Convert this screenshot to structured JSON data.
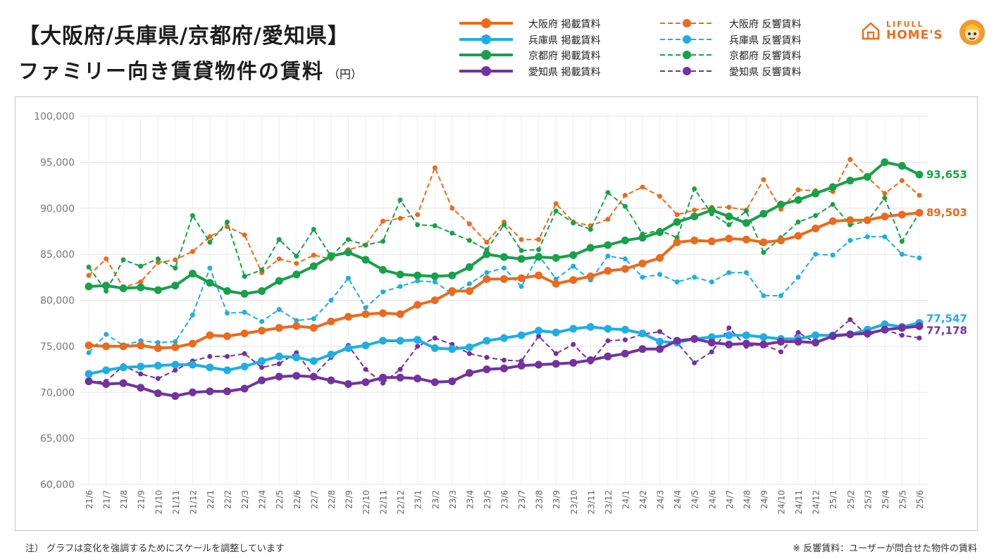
{
  "title": {
    "line1": "【大阪府/兵庫県/京都府/愛知県】",
    "line2": "ファミリー向き賃貸物件の賃料",
    "unit": "（円）"
  },
  "logo": {
    "top": "LIFULL",
    "bottom": "HOME'S"
  },
  "notes": {
    "left": "注） グラフは変化を強調するためにスケールを調整しています",
    "right": "※ 反響賃料：ユーザーが問合せた物件の賃料"
  },
  "colors": {
    "osaka": "#ea6a1e",
    "hyogo": "#1eaee3",
    "kyoto": "#18a04a",
    "aichi": "#7232a0"
  },
  "chart_data": {
    "type": "line",
    "categories": [
      "21/6",
      "21/7",
      "21/8",
      "21/9",
      "21/10",
      "21/11",
      "21/12",
      "22/1",
      "22/2",
      "22/3",
      "22/4",
      "22/5",
      "22/6",
      "22/7",
      "22/8",
      "22/9",
      "22/10",
      "22/11",
      "22/12",
      "23/1",
      "23/2",
      "23/3",
      "23/4",
      "23/5",
      "23/6",
      "23/7",
      "23/8",
      "23/9",
      "23/10",
      "23/11",
      "23/12",
      "24/1",
      "24/2",
      "24/3",
      "24/4",
      "24/5",
      "24/6",
      "24/7",
      "24/8",
      "24/9",
      "24/10",
      "24/11",
      "24/12",
      "25/1",
      "25/2",
      "25/3",
      "25/4",
      "25/5",
      "25/6"
    ],
    "y_ticks": [
      "60,000",
      "65,000",
      "70,000",
      "75,000",
      "80,000",
      "85,000",
      "90,000",
      "95,000",
      "100,000"
    ],
    "ylim": [
      60000,
      100000
    ],
    "grid": true,
    "legend_position": "top",
    "end_labels": [
      {
        "series": "京都府 掲載賃料",
        "text": "93,653"
      },
      {
        "series": "大阪府 掲載賃料",
        "text": "89,503"
      },
      {
        "series": "兵庫県 掲載賃料",
        "text": "77,547"
      },
      {
        "series": "愛知県 掲載賃料",
        "text": "77,178"
      }
    ],
    "series": [
      {
        "name": "大阪府 掲載賃料",
        "color": "#ea6a1e",
        "style": "solid",
        "values": [
          75100,
          75000,
          75000,
          75100,
          74800,
          74900,
          75300,
          76200,
          76100,
          76400,
          76700,
          77000,
          77200,
          77000,
          77700,
          78200,
          78500,
          78600,
          78500,
          79500,
          80000,
          81000,
          81000,
          82300,
          82300,
          82400,
          82700,
          81800,
          82200,
          82600,
          83200,
          83400,
          84000,
          84600,
          86300,
          86500,
          86400,
          86700,
          86600,
          86300,
          86500,
          87000,
          87800,
          88600,
          88700,
          88700,
          89100,
          89300,
          89503
        ]
      },
      {
        "name": "兵庫県 掲載賃料",
        "color": "#1eaee3",
        "style": "solid",
        "values": [
          72000,
          72400,
          72700,
          72800,
          72900,
          73000,
          73000,
          72700,
          72400,
          72800,
          73400,
          73900,
          73800,
          73400,
          74100,
          74800,
          75100,
          75600,
          75600,
          75700,
          74800,
          74700,
          74900,
          75600,
          75900,
          76200,
          76700,
          76500,
          76900,
          77100,
          76900,
          76800,
          76400,
          75500,
          75400,
          75800,
          76000,
          76200,
          76200,
          76000,
          75800,
          75800,
          76200,
          76200,
          76300,
          76800,
          77400,
          77100,
          77547
        ]
      },
      {
        "name": "京都府 掲載賃料",
        "color": "#18a04a",
        "style": "solid",
        "values": [
          81500,
          81600,
          81300,
          81400,
          81100,
          81600,
          82900,
          81900,
          81000,
          80700,
          81000,
          82100,
          82800,
          83700,
          84800,
          85200,
          84400,
          83300,
          82800,
          82700,
          82600,
          82700,
          83600,
          85000,
          84700,
          84500,
          84700,
          84600,
          84900,
          85700,
          86000,
          86500,
          86800,
          87400,
          88500,
          89100,
          89800,
          89100,
          88400,
          89400,
          90400,
          90900,
          91600,
          92300,
          93000,
          93400,
          95000,
          94600,
          93653
        ]
      },
      {
        "name": "愛知県 掲載賃料",
        "color": "#7232a0",
        "style": "solid",
        "values": [
          71200,
          70900,
          71000,
          70500,
          69900,
          69600,
          70000,
          70100,
          70100,
          70400,
          71300,
          71700,
          71800,
          71700,
          71300,
          70900,
          71100,
          71600,
          71600,
          71500,
          71100,
          71200,
          72100,
          72500,
          72600,
          72900,
          73000,
          73100,
          73200,
          73500,
          73900,
          74200,
          74700,
          74700,
          75600,
          75800,
          75400,
          75200,
          75300,
          75200,
          75500,
          75500,
          75400,
          76100,
          76300,
          76400,
          76800,
          77000,
          77178
        ]
      },
      {
        "name": "大阪府 反響賃料",
        "color": "#ea6a1e",
        "style": "dashed",
        "values": [
          82700,
          84500,
          81400,
          82000,
          84100,
          84400,
          85300,
          86900,
          88000,
          87100,
          83000,
          84500,
          84000,
          84900,
          84500,
          85500,
          86000,
          88600,
          88900,
          89300,
          94400,
          90000,
          88300,
          86300,
          88500,
          86600,
          86600,
          90500,
          88500,
          88100,
          88800,
          91400,
          92300,
          91300,
          89300,
          89800,
          90100,
          90100,
          89800,
          93100,
          89900,
          92000,
          91900,
          91800,
          95300,
          93400,
          91600,
          93000,
          91400
        ]
      },
      {
        "name": "兵庫県 反響賃料",
        "color": "#1eaee3",
        "style": "dashed",
        "values": [
          74300,
          76300,
          75100,
          75600,
          75400,
          75500,
          78400,
          83500,
          78600,
          78700,
          77700,
          79000,
          77800,
          78000,
          80000,
          82400,
          79200,
          80900,
          81500,
          82100,
          82000,
          80700,
          81800,
          83000,
          83500,
          81500,
          84900,
          82300,
          83700,
          82200,
          84800,
          84500,
          82500,
          82800,
          82000,
          82500,
          82000,
          83000,
          83000,
          80500,
          80500,
          82500,
          85000,
          84900,
          86500,
          86900,
          86900,
          85000,
          84600
        ]
      },
      {
        "name": "京都府 反響賃料",
        "color": "#18a04a",
        "style": "dashed",
        "values": [
          83600,
          81000,
          84400,
          83700,
          84500,
          83500,
          89200,
          86300,
          88500,
          82600,
          83300,
          86600,
          84800,
          87700,
          84800,
          86600,
          86000,
          86400,
          90900,
          88200,
          88100,
          87300,
          86500,
          85500,
          88200,
          85400,
          85500,
          89700,
          88400,
          87700,
          91700,
          90200,
          87200,
          87600,
          86800,
          92100,
          89400,
          88200,
          89700,
          85200,
          86800,
          88500,
          89200,
          90400,
          88200,
          88600,
          91100,
          86400,
          89500
        ]
      },
      {
        "name": "愛知県 反響賃料",
        "color": "#7232a0",
        "style": "dashed",
        "values": [
          71100,
          71200,
          72900,
          72000,
          71500,
          72400,
          73400,
          73900,
          73900,
          74200,
          72700,
          73100,
          74300,
          71800,
          73800,
          75100,
          72500,
          71000,
          72500,
          75000,
          75900,
          75200,
          74200,
          73800,
          73500,
          73400,
          76100,
          74200,
          75200,
          73300,
          75600,
          75700,
          76300,
          76600,
          75400,
          73200,
          74400,
          77000,
          75000,
          75200,
          74400,
          76500,
          75400,
          76300,
          77900,
          76200,
          76800,
          76200,
          75900
        ]
      }
    ]
  }
}
